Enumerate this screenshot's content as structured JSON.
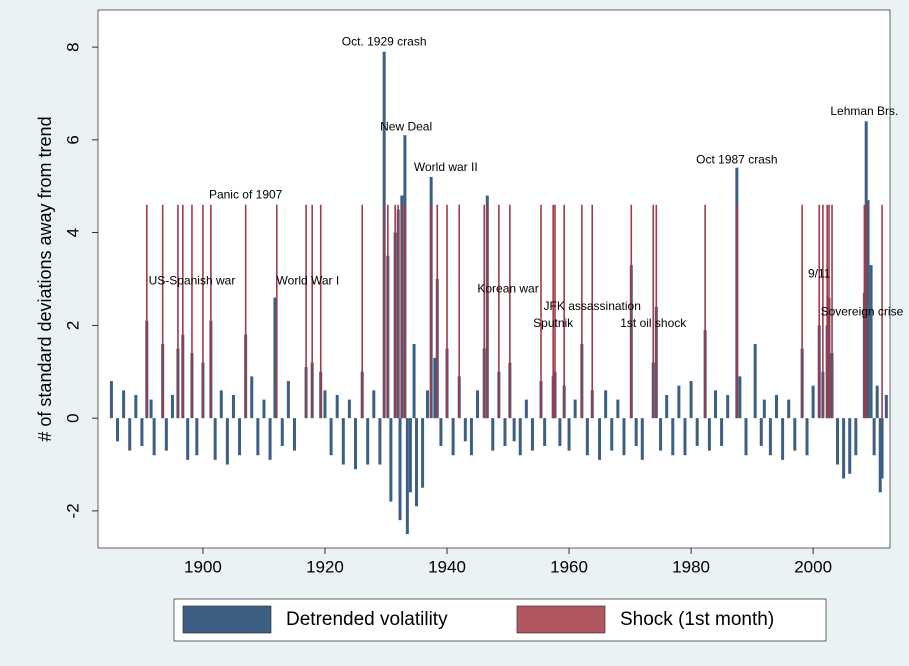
{
  "chart_data": {
    "type": "bar",
    "ylabel": "# of standard deviations away from trend",
    "xlim": [
      1882.8,
      2012.6
    ],
    "ylim": [
      -2.8,
      8.8
    ],
    "xticks": [
      1900,
      1920,
      1940,
      1960,
      1980,
      2000
    ],
    "yticks": [
      -2,
      0,
      2,
      4,
      6,
      8
    ],
    "series": [
      {
        "name": "Detrended volatility",
        "color": "#3d5f84",
        "x": [
          1885,
          1886,
          1887,
          1888,
          1889,
          1890,
          1890.8,
          1891.5,
          1892,
          1893.4,
          1894,
          1895,
          1895.9,
          1896.7,
          1897.5,
          1898.2,
          1899,
          1900,
          1901.3,
          1902,
          1903,
          1904,
          1905,
          1906,
          1907,
          1908,
          1909,
          1910,
          1911,
          1911.8,
          1913,
          1914,
          1915,
          1916.9,
          1917.9,
          1919.3,
          1920,
          1921,
          1922,
          1923,
          1924,
          1925,
          1926.1,
          1927,
          1928,
          1929,
          1929.7,
          1930.3,
          1930.8,
          1931.5,
          1932,
          1932.3,
          1932.6,
          1933.1,
          1933.5,
          1934,
          1934.6,
          1935,
          1936,
          1936.8,
          1937.4,
          1938,
          1938.4,
          1939,
          1940,
          1941,
          1942,
          1943,
          1944,
          1945,
          1946.1,
          1946.6,
          1947.5,
          1948.5,
          1949.5,
          1950.3,
          1951,
          1952,
          1953,
          1954,
          1955.4,
          1956,
          1957.4,
          1957.7,
          1958.5,
          1959.2,
          1960,
          1961,
          1962.1,
          1963,
          1963.8,
          1965,
          1966,
          1967,
          1968,
          1969,
          1970.2,
          1971,
          1972,
          1973.8,
          1974.3,
          1975,
          1976,
          1977,
          1978,
          1979,
          1980,
          1981,
          1982.3,
          1983,
          1984,
          1985,
          1986,
          1987.5,
          1988,
          1989,
          1990.5,
          1991.5,
          1992,
          1993,
          1994,
          1995,
          1996,
          1997,
          1998.2,
          1999,
          2000,
          2001,
          2001.6,
          2002.3,
          2002.6,
          2003.1,
          2004,
          2005,
          2006,
          2007,
          2008.4,
          2008.7,
          2009,
          2009.5,
          2010,
          2010.5,
          2011,
          2011.3,
          2012
        ],
        "values": [
          0.8,
          -0.5,
          0.6,
          -0.7,
          0.5,
          -0.6,
          2.1,
          0.4,
          -0.8,
          1.6,
          -0.7,
          0.5,
          1.5,
          1.8,
          -0.9,
          1.4,
          -0.8,
          1.2,
          2.1,
          -0.9,
          0.6,
          -1.0,
          0.5,
          -0.8,
          1.8,
          0.9,
          -0.8,
          0.4,
          -0.9,
          2.6,
          -0.6,
          0.8,
          -0.7,
          1.1,
          1.2,
          1.0,
          0.6,
          -0.8,
          0.5,
          -1.0,
          0.4,
          -1.1,
          1.0,
          -1.0,
          0.6,
          -1.0,
          7.9,
          3.5,
          -1.8,
          4.0,
          4.5,
          -2.2,
          4.8,
          6.1,
          -2.5,
          -1.6,
          1.6,
          -1.9,
          -1.5,
          0.6,
          5.2,
          1.3,
          3.0,
          -0.6,
          1.5,
          -0.8,
          0.9,
          -0.5,
          -0.8,
          0.6,
          1.5,
          4.8,
          -0.7,
          1.0,
          -0.6,
          1.2,
          -0.5,
          -0.8,
          0.4,
          -0.7,
          0.8,
          -0.6,
          0.9,
          1.0,
          -0.6,
          0.7,
          -0.7,
          0.4,
          1.6,
          -0.8,
          0.6,
          -0.9,
          0.6,
          -0.7,
          0.4,
          -0.8,
          3.3,
          -0.6,
          -0.9,
          1.2,
          2.4,
          -0.7,
          0.5,
          -0.8,
          0.7,
          -0.8,
          0.8,
          -0.6,
          1.9,
          -0.7,
          0.6,
          -0.6,
          0.5,
          5.4,
          0.9,
          -0.8,
          1.6,
          -0.6,
          0.4,
          -0.8,
          0.5,
          -0.9,
          0.4,
          -0.7,
          1.5,
          -0.8,
          0.7,
          2.0,
          1.0,
          2.0,
          2.6,
          1.4,
          -1.0,
          -1.3,
          -1.2,
          -0.8,
          2.7,
          6.4,
          4.7,
          3.3,
          -0.8,
          0.7,
          -1.6,
          -1.3,
          0.5
        ]
      },
      {
        "name": "Shock (1st month)",
        "color": "#a23a47",
        "x": [
          1890.8,
          1893.4,
          1895.9,
          1896.7,
          1898.2,
          1900.0,
          1901.3,
          1907.0,
          1912.1,
          1916.9,
          1917.9,
          1919.3,
          1926.1,
          1929.7,
          1930.3,
          1931.5,
          1932.0,
          1932.6,
          1933.1,
          1937.4,
          1938.4,
          1940.0,
          1942.0,
          1946.1,
          1946.6,
          1948.5,
          1950.3,
          1955.4,
          1957.4,
          1957.7,
          1959.2,
          1962.1,
          1963.8,
          1970.2,
          1973.8,
          1974.3,
          1982.3,
          1987.5,
          1998.2,
          2001.0,
          2001.6,
          2002.3,
          2002.6,
          2003.1,
          2008.4,
          2008.7,
          2011.3
        ],
        "values": [
          4.6,
          4.6,
          4.6,
          4.6,
          4.6,
          4.6,
          4.6,
          4.6,
          4.6,
          4.6,
          4.6,
          4.6,
          4.6,
          4.6,
          4.6,
          4.6,
          4.6,
          4.6,
          4.6,
          4.6,
          4.6,
          4.6,
          4.6,
          4.6,
          4.6,
          4.6,
          4.6,
          4.6,
          4.6,
          4.6,
          4.6,
          4.6,
          4.6,
          4.6,
          4.6,
          4.6,
          4.6,
          4.6,
          4.6,
          4.6,
          4.6,
          4.6,
          4.6,
          4.6,
          4.6,
          4.6,
          4.6
        ]
      }
    ],
    "annotations": [
      "Oct. 1929 crash",
      "New Deal",
      "World war II",
      "Panic of 1907",
      "US-Spanish war",
      "World War I",
      "Korean war",
      "JFK assassination",
      "Sputnik",
      "1st oil shock",
      "Oct 1987 crash",
      "9/11",
      "Sovereign crise",
      "Lehman Brs."
    ]
  }
}
